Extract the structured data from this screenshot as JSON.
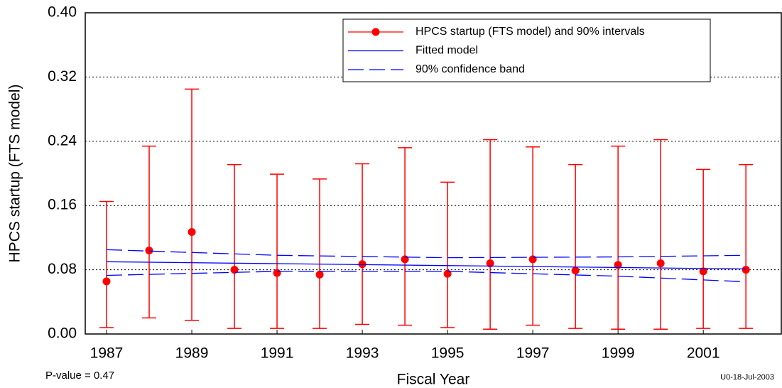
{
  "chart_data": {
    "type": "errorbar",
    "x_label": "Fiscal Year",
    "y_label": "HPCS startup (FTS model)",
    "annotations": [
      "P-value = 0.47",
      "U0-18-Jul-2003"
    ],
    "xlim": [
      1986.5,
      2002.83
    ],
    "xticks": [
      1987,
      1989,
      1991,
      1993,
      1995,
      1997,
      1999,
      2001
    ],
    "ylim": [
      0,
      0.4
    ],
    "yticks": [
      {
        "value": 0,
        "label": "0.00"
      },
      {
        "value": 0.08,
        "label": "0.08"
      },
      {
        "value": 0.16,
        "label": "0.16"
      },
      {
        "value": 0.24,
        "label": "0.24"
      },
      {
        "value": 0.32,
        "label": "0.32"
      },
      {
        "value": 0.4,
        "label": "0.40"
      }
    ],
    "grid": true,
    "legend": "top-right",
    "series": [
      {
        "name": "HPCS startup (FTS model) and 90% intervals",
        "color": "#ff0000",
        "style": "errorbar",
        "x": [
          1987,
          1988,
          1989,
          1990,
          1991,
          1992,
          1993,
          1994,
          1995,
          1996,
          1997,
          1998,
          1999,
          2000,
          2001,
          2002
        ],
        "values": [
          0.0655,
          0.104,
          0.127,
          0.08,
          0.076,
          0.074,
          0.087,
          0.093,
          0.075,
          0.088,
          0.093,
          0.079,
          0.086,
          0.088,
          0.078,
          0.08
        ],
        "lower": [
          0.008,
          0.02,
          0.017,
          0.007,
          0.007,
          0.007,
          0.012,
          0.011,
          0.008,
          0.006,
          0.011,
          0.007,
          0.006,
          0.006,
          0.007,
          0.007
        ],
        "upper": [
          0.165,
          0.234,
          0.305,
          0.211,
          0.199,
          0.193,
          0.212,
          0.232,
          0.189,
          0.242,
          0.233,
          0.211,
          0.234,
          0.242,
          0.205,
          0.211
        ]
      },
      {
        "name": "Fitted model",
        "color": "#0000ff",
        "style": "solid",
        "x": [
          1987,
          2002
        ],
        "values": [
          0.09,
          0.081
        ]
      },
      {
        "name": "90% confidence band",
        "color": "#0000ff",
        "style": "dashed",
        "x": [
          1987,
          1991,
          1995,
          1999,
          2002
        ],
        "values": [
          0.105,
          0.098,
          0.095,
          0.096,
          0.098
        ],
        "lower_x": [
          1987,
          1991,
          1995,
          1999,
          2002
        ],
        "lower": [
          0.073,
          0.078,
          0.078,
          0.072,
          0.065
        ]
      }
    ]
  }
}
